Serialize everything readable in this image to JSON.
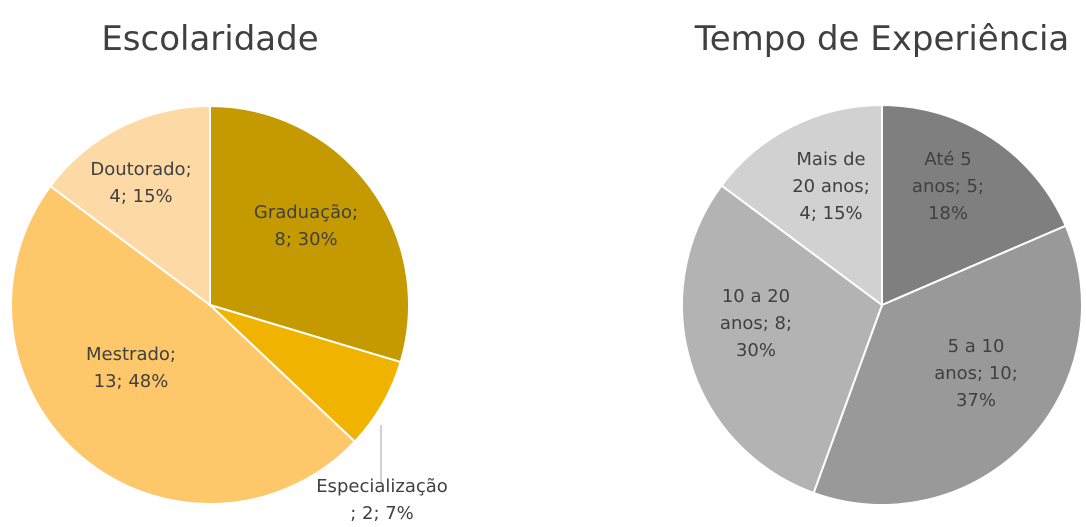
{
  "chart_data": [
    {
      "type": "pie",
      "title": "Escolaridade",
      "values": [
        8,
        2,
        13,
        4
      ],
      "value_labels": [
        [
          "Graduação;",
          "8; 30%"
        ],
        [
          "Especialização",
          "; 2; 7%"
        ],
        [
          "Mestrado;",
          "13; 48%"
        ],
        [
          "Doutorado;",
          "4; 15%"
        ]
      ],
      "colors": [
        "#c49a00",
        "#efb300",
        "#fdc76a",
        "#fdd9a6"
      ]
    },
    {
      "type": "pie",
      "title": "Tempo de Experiência",
      "values": [
        5,
        10,
        8,
        4
      ],
      "value_labels": [
        [
          "Até 5",
          "anos; 5;",
          "18%"
        ],
        [
          "5 a 10",
          "anos; 10;",
          "37%"
        ],
        [
          "10 a 20",
          "anos; 8;",
          "30%"
        ],
        [
          "Mais de",
          "20 anos;",
          "4; 15%"
        ]
      ],
      "colors": [
        "#7f7f7f",
        "#999999",
        "#b3b3b3",
        "#d1d1d1"
      ]
    }
  ]
}
